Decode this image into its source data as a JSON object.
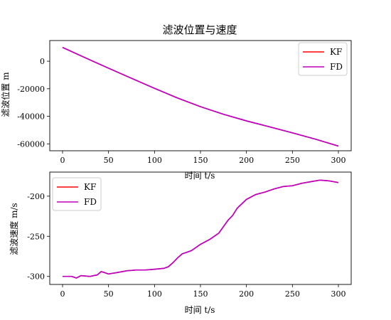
{
  "chart_data": [
    {
      "type": "line",
      "title": "滤波位置与速度",
      "xlabel": "时间 t/s",
      "ylabel": "滤波位置 m",
      "xlim": [
        0,
        300
      ],
      "ylim": [
        -65000,
        15000
      ],
      "xticks": [
        0,
        50,
        100,
        150,
        200,
        250,
        300
      ],
      "yticks": [
        0,
        -20000,
        -40000,
        -60000
      ],
      "legend_position": "top-right",
      "series": [
        {
          "name": "KF",
          "color": "#ff0000",
          "x": [
            0,
            25,
            50,
            75,
            100,
            125,
            150,
            175,
            200,
            225,
            250,
            275,
            300
          ],
          "y": [
            10000,
            2400,
            -5100,
            -12400,
            -19700,
            -26700,
            -33000,
            -38500,
            -43300,
            -47600,
            -52000,
            -56600,
            -61600
          ]
        },
        {
          "name": "FD",
          "color": "#bf00bf",
          "x": [
            0,
            25,
            50,
            75,
            100,
            125,
            150,
            175,
            200,
            225,
            250,
            275,
            300
          ],
          "y": [
            10000,
            2400,
            -5100,
            -12400,
            -19700,
            -26700,
            -33000,
            -38500,
            -43300,
            -47600,
            -52000,
            -56600,
            -61600
          ]
        }
      ]
    },
    {
      "type": "line",
      "title": "",
      "xlabel": "时间 t/s",
      "ylabel": "滤波速度 m/s",
      "xlim": [
        0,
        300
      ],
      "ylim": [
        -310,
        -170
      ],
      "xticks": [
        0,
        50,
        100,
        150,
        200,
        250,
        300
      ],
      "yticks": [
        -200,
        -250,
        -300
      ],
      "legend_position": "top-left",
      "series": [
        {
          "name": "KF",
          "color": "#ff0000",
          "x": [
            0,
            10,
            15,
            20,
            30,
            38,
            42,
            45,
            50,
            55,
            60,
            70,
            80,
            90,
            100,
            110,
            115,
            120,
            125,
            130,
            140,
            150,
            160,
            170,
            175,
            180,
            185,
            190,
            200,
            210,
            220,
            230,
            240,
            250,
            260,
            270,
            280,
            290,
            300
          ],
          "y": [
            -300,
            -300,
            -302,
            -299,
            -300,
            -298,
            -294,
            -295,
            -297,
            -296,
            -295,
            -293,
            -292,
            -292,
            -291,
            -290,
            -288,
            -283,
            -277,
            -272,
            -268,
            -260,
            -254,
            -246,
            -238,
            -230,
            -224,
            -215,
            -204,
            -198,
            -195,
            -191,
            -188,
            -187,
            -184,
            -182,
            -180,
            -181,
            -183
          ]
        },
        {
          "name": "FD",
          "color": "#bf00bf",
          "x": [
            0,
            10,
            15,
            20,
            30,
            38,
            42,
            45,
            50,
            55,
            60,
            70,
            80,
            90,
            100,
            110,
            115,
            120,
            125,
            130,
            140,
            150,
            160,
            170,
            175,
            180,
            185,
            190,
            200,
            210,
            220,
            230,
            240,
            250,
            260,
            270,
            280,
            290,
            300
          ],
          "y": [
            -300,
            -300,
            -302,
            -299,
            -300,
            -298,
            -294,
            -295,
            -297,
            -296,
            -295,
            -293,
            -292,
            -292,
            -291,
            -290,
            -288,
            -283,
            -277,
            -272,
            -268,
            -260,
            -254,
            -246,
            -238,
            -230,
            -224,
            -215,
            -204,
            -198,
            -195,
            -191,
            -188,
            -187,
            -184,
            -182,
            -180,
            -181,
            -183
          ]
        }
      ]
    }
  ]
}
